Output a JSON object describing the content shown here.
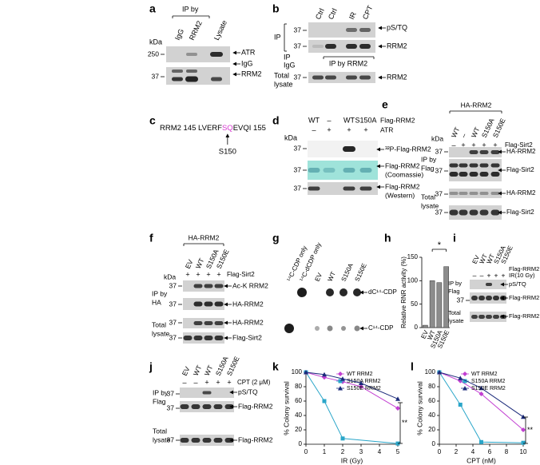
{
  "panels": {
    "a": {
      "label": "a",
      "ip_by": "IP by",
      "lanes": [
        "IgG",
        "RRM2",
        "Lysate"
      ],
      "kda": "kDa",
      "mw": [
        "250",
        "37"
      ],
      "bands": [
        "ATR",
        "IgG",
        "RRM2"
      ]
    },
    "b": {
      "label": "b",
      "lanes": [
        "Ctrl",
        "Ctrl",
        "IR",
        "CPT"
      ],
      "ip": "IP",
      "mw": [
        "37",
        "37",
        "37"
      ],
      "bands": [
        "pS/TQ",
        "RRM2",
        "RRM2"
      ],
      "ip_igg": [
        "IP",
        "IgG"
      ],
      "ip_by": "IP by RRM2",
      "total": [
        "Total",
        "lysate"
      ]
    },
    "c": {
      "label": "c",
      "seq_start": "RRM2 145 LVERF",
      "seq_site": "SQ",
      "seq_end": "EVQI 155",
      "site": "S150"
    },
    "d": {
      "label": "d",
      "lanes": [
        "WT",
        "–",
        "WT",
        "S150A"
      ],
      "lane_label": "Flag-RRM2",
      "atr": [
        "–",
        "+",
        "+",
        "+"
      ],
      "atr_label": "ATR",
      "kda": "kDa",
      "mw": [
        "37",
        "37",
        "37"
      ],
      "bands": [
        "³²P-Flag-RRM2",
        "Flag-RRM2",
        "(Coomassie)",
        "Flag-RRM2",
        "(Western)"
      ]
    },
    "e": {
      "label": "e",
      "group": "HA-RRM2",
      "lanes": [
        "WT",
        "–",
        "WT",
        "S150A",
        "S150E"
      ],
      "sirt": [
        "–",
        "+",
        "+",
        "+",
        "+"
      ],
      "sirt_label": "Flag-Sirt2",
      "kda": "kDa",
      "ip": [
        "IP by",
        "Flag"
      ],
      "total": [
        "Total",
        "lysate"
      ],
      "mw": [
        "37",
        "37",
        "37",
        "37"
      ],
      "bands": [
        "HA-RRM2",
        "Flag-Sirt2",
        "HA-RRM2",
        "Flag-Sirt2"
      ]
    },
    "f": {
      "label": "f",
      "group": "HA-RRM2",
      "lanes": [
        "EV",
        "WT",
        "S150A",
        "S150E"
      ],
      "sirt": [
        "+",
        "+",
        "+",
        "+"
      ],
      "sirt_label": "Flag-Sirt2",
      "kda": "kDa",
      "ip": [
        "IP by",
        "HA"
      ],
      "total": [
        "Total",
        "lysate"
      ],
      "mw": [
        "37",
        "37",
        "37",
        "37"
      ],
      "bands": [
        "Ac-K RRM2",
        "HA-RRM2",
        "HA-RRM2",
        "Flag-Sirt2"
      ]
    },
    "g": {
      "label": "g",
      "lanes": [
        "¹⁴C-CDP only",
        "¹⁴C-dCDP only",
        "EV",
        "WT",
        "S150A",
        "S150E"
      ],
      "spots": [
        "dC¹⁴-CDP",
        "C¹⁴-CDP"
      ]
    },
    "h": {
      "label": "h",
      "chart": {
        "type": "bar",
        "ylabel": "Relative RNR activity (%)",
        "categories": [
          "EV",
          "WT",
          "S150A",
          "S150E"
        ],
        "values": [
          5,
          100,
          96,
          130
        ],
        "color": "#8c8c8c",
        "ylim": [
          0,
          150
        ],
        "yticks": [
          0,
          50,
          100,
          150
        ],
        "annotation": "*"
      }
    },
    "i": {
      "label": "i",
      "lanes": [
        "EV",
        "WT",
        "WT",
        "S150A",
        "S150E"
      ],
      "lane_label": "Flag-RRM2",
      "ir": [
        "–",
        "–",
        "+",
        "+",
        "+"
      ],
      "ir_label": "IR(10 Gy)",
      "ip": [
        "IP by",
        "Flag"
      ],
      "total": [
        "Total",
        "lysate"
      ],
      "mw": [
        "37"
      ],
      "bands": [
        "pS/TQ",
        "Flag-RRM2",
        "Flag-RRM2"
      ]
    },
    "j": {
      "label": "j",
      "lanes": [
        "EV",
        "WT",
        "WT",
        "S150A",
        "S150E"
      ],
      "cpt": [
        "–",
        "–",
        "+",
        "+",
        "+"
      ],
      "cpt_label": "CPT (2 μM)",
      "ip": [
        "IP by",
        "Flag"
      ],
      "total": [
        "Total",
        "lysate"
      ],
      "mw": [
        "37",
        "37",
        "37"
      ],
      "bands": [
        "pS/TQ",
        "Flag-RRM2",
        "Flag-RRM2"
      ]
    },
    "k": {
      "label": "k",
      "chart": {
        "type": "line",
        "xlabel": "IR (Gy)",
        "ylabel": "% Colony survival",
        "xlim": [
          0,
          5
        ],
        "xticks": [
          0,
          1,
          2,
          3,
          4,
          5
        ],
        "ylim": [
          0,
          100
        ],
        "yticks": [
          0,
          20,
          40,
          60,
          80,
          100
        ],
        "annotation": "**",
        "series": [
          {
            "name": "WT RRM2",
            "color": "#c23fd2",
            "x": [
              0,
              1,
              2,
              3,
              5
            ],
            "values": [
              100,
              93,
              87,
              80,
              50
            ]
          },
          {
            "name": "S150A RRM2",
            "color": "#2aa6c9",
            "x": [
              0,
              1,
              2,
              5
            ],
            "values": [
              100,
              60,
              8,
              1
            ]
          },
          {
            "name": "S150E RRM2",
            "color": "#1b2a7a",
            "x": [
              0,
              1,
              2,
              3,
              5
            ],
            "values": [
              100,
              97,
              91,
              85,
              63
            ]
          }
        ]
      }
    },
    "l": {
      "label": "l",
      "chart": {
        "type": "line",
        "xlabel": "CPT (nM)",
        "ylabel": "% Colony survival",
        "xlim": [
          0,
          10
        ],
        "xticks": [
          0,
          2,
          4,
          6,
          8,
          10
        ],
        "ylim": [
          0,
          100
        ],
        "yticks": [
          0,
          20,
          40,
          60,
          80,
          100
        ],
        "annotation": "**",
        "series": [
          {
            "name": "WT RRM2",
            "color": "#c23fd2",
            "x": [
              0,
              2.5,
              5,
              10
            ],
            "values": [
              100,
              88,
              70,
              20
            ]
          },
          {
            "name": "S150A RRM2",
            "color": "#2aa6c9",
            "x": [
              0,
              2.5,
              5,
              10
            ],
            "values": [
              100,
              55,
              3,
              2
            ]
          },
          {
            "name": "S150E RRM2",
            "color": "#1b2a7a",
            "x": [
              0,
              2.5,
              5,
              10
            ],
            "values": [
              100,
              92,
              78,
              38
            ]
          }
        ]
      }
    }
  }
}
